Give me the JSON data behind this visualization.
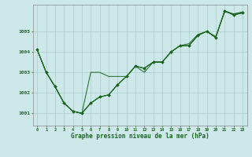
{
  "title": "Graphe pression niveau de la mer (hPa)",
  "bg_color": "#cce8e8",
  "grid_color": "#aacccc",
  "line_color": "#1a6620",
  "marker_color": "#1a6620",
  "xlim": [
    -0.5,
    23.5
  ],
  "ylim": [
    1000.4,
    1006.3
  ],
  "yticks": [
    1001,
    1002,
    1003,
    1004,
    1005
  ],
  "xticks": [
    0,
    1,
    2,
    3,
    4,
    5,
    6,
    7,
    8,
    9,
    10,
    11,
    12,
    13,
    14,
    15,
    16,
    17,
    18,
    19,
    20,
    21,
    22,
    23
  ],
  "series1": [
    1004.1,
    1003.0,
    1002.3,
    1001.5,
    1001.1,
    1001.0,
    1001.5,
    1001.8,
    1001.9,
    1002.4,
    1002.8,
    1003.3,
    1003.2,
    1003.5,
    1003.5,
    1004.0,
    1004.3,
    1004.3,
    1004.8,
    1005.0,
    1004.7,
    1006.0,
    1005.8,
    1005.9
  ],
  "series2": [
    1004.1,
    1003.0,
    1002.3,
    1001.5,
    1001.1,
    1001.0,
    1003.0,
    1003.0,
    1002.8,
    1002.8,
    1002.8,
    1003.3,
    1003.0,
    1003.5,
    1003.5,
    1004.0,
    1004.3,
    1004.3,
    1004.8,
    1005.0,
    1004.7,
    1006.0,
    1005.85,
    1005.9
  ],
  "series3": [
    1004.1,
    1003.0,
    1002.3,
    1001.5,
    1001.1,
    1001.0,
    1001.5,
    1001.8,
    1001.9,
    1002.4,
    1002.8,
    1003.3,
    1003.2,
    1003.5,
    1003.5,
    1004.0,
    1004.3,
    1004.4,
    1004.85,
    1005.0,
    1004.75,
    1005.95,
    1005.85,
    1005.95
  ],
  "series4_x": [
    0,
    1,
    2,
    3,
    4,
    5,
    6,
    7,
    8,
    9,
    10,
    11,
    12,
    13,
    14,
    15,
    16,
    17,
    18,
    19,
    20,
    21,
    22,
    23
  ],
  "series4": [
    1004.1,
    1003.0,
    1002.3,
    1001.5,
    1001.1,
    1001.0,
    1001.5,
    1001.8,
    1001.9,
    1002.4,
    1002.8,
    1003.3,
    1003.2,
    1003.5,
    1003.5,
    1004.0,
    1004.3,
    1004.3,
    1004.8,
    1005.0,
    1004.7,
    1006.0,
    1005.8,
    1005.9
  ]
}
